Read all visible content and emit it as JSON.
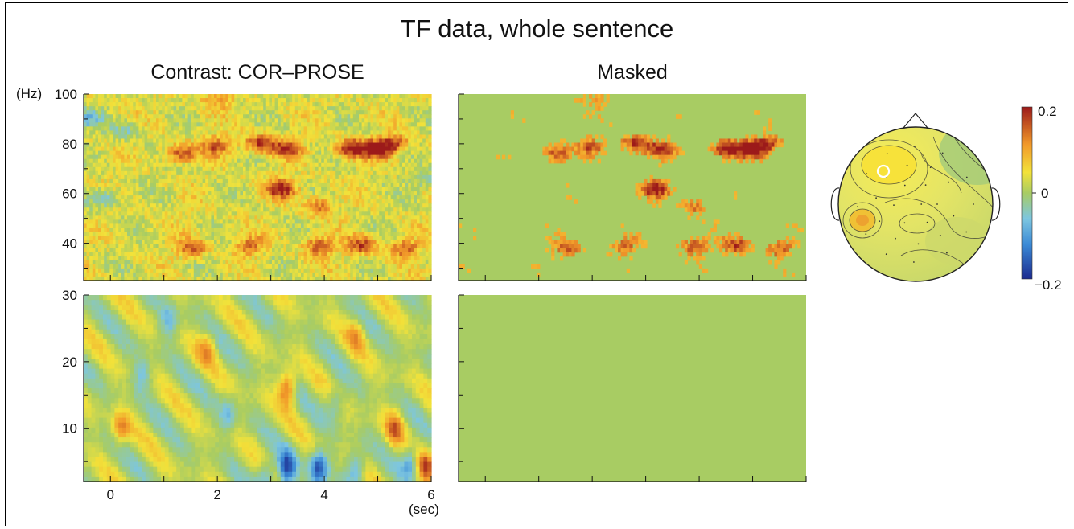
{
  "figure": {
    "title": "TF data, whole sentence"
  },
  "chart_data": [
    {
      "type": "heatmap",
      "title": "Contrast: COR–PROSE",
      "panel": "high-frequency",
      "ylabel": "(Hz)",
      "xlim": [
        -0.5,
        6
      ],
      "ylim": [
        25,
        100
      ],
      "y_ticks": [
        40,
        60,
        80,
        100
      ],
      "x_ticks": [],
      "colormap": "jet",
      "clim": [
        -0.2,
        0.2
      ],
      "hotspots": [
        {
          "t": 1.3,
          "f": 76,
          "v": 0.13
        },
        {
          "t": 2.0,
          "f": 79,
          "v": 0.12
        },
        {
          "t": 2.8,
          "f": 80,
          "v": 0.14
        },
        {
          "t": 3.3,
          "f": 78,
          "v": 0.13
        },
        {
          "t": 3.2,
          "f": 62,
          "v": 0.16
        },
        {
          "t": 3.9,
          "f": 55,
          "v": 0.1
        },
        {
          "t": 4.5,
          "f": 78,
          "v": 0.17
        },
        {
          "t": 5.0,
          "f": 78,
          "v": 0.15
        },
        {
          "t": 5.3,
          "f": 80,
          "v": 0.12
        },
        {
          "t": 1.5,
          "f": 38,
          "v": 0.12
        },
        {
          "t": 2.6,
          "f": 39,
          "v": 0.1
        },
        {
          "t": 3.9,
          "f": 39,
          "v": 0.12
        },
        {
          "t": 4.7,
          "f": 39,
          "v": 0.13
        },
        {
          "t": 5.5,
          "f": 38,
          "v": 0.11
        },
        {
          "t": 2.0,
          "f": 98,
          "v": 0.08
        },
        {
          "t": -0.1,
          "f": 58,
          "v": -0.09
        },
        {
          "t": 0.3,
          "f": 85,
          "v": -0.06
        },
        {
          "t": -0.45,
          "f": 90,
          "v": -0.1
        },
        {
          "t": 5.9,
          "f": 65,
          "v": -0.06
        }
      ]
    },
    {
      "type": "heatmap",
      "title": "",
      "panel": "low-frequency",
      "ylabel": "",
      "xlabel": "(sec)",
      "xlim": [
        -0.5,
        6
      ],
      "ylim": [
        2,
        30
      ],
      "y_ticks": [
        10,
        20,
        30
      ],
      "x_ticks": [
        0,
        2,
        4,
        6
      ],
      "colormap": "jet",
      "clim": [
        -0.2,
        0.2
      ],
      "hotspots": [
        {
          "t": 3.3,
          "f": 16,
          "v": 0.14
        },
        {
          "t": 0.2,
          "f": 10,
          "v": 0.1
        },
        {
          "t": 5.3,
          "f": 10,
          "v": 0.11
        },
        {
          "t": 5.9,
          "f": 4,
          "v": 0.14
        },
        {
          "t": 1.8,
          "f": 22,
          "v": 0.08
        },
        {
          "t": 4.6,
          "f": 24,
          "v": 0.08
        },
        {
          "t": 3.3,
          "f": 4,
          "v": -0.17
        },
        {
          "t": 3.9,
          "f": 4,
          "v": -0.18
        },
        {
          "t": 2.9,
          "f": 3,
          "v": -0.1
        },
        {
          "t": 4.6,
          "f": 4,
          "v": -0.1
        },
        {
          "t": 5.6,
          "f": 5,
          "v": -0.1
        },
        {
          "t": 1.1,
          "f": 26,
          "v": -0.08
        },
        {
          "t": 2.2,
          "f": 12,
          "v": -0.07
        },
        {
          "t": 4.2,
          "f": 14,
          "v": -0.07
        },
        {
          "t": 0.6,
          "f": 18,
          "v": -0.07
        }
      ]
    },
    {
      "type": "heatmap",
      "title": "Masked",
      "panel": "high-frequency-masked",
      "xlim": [
        -0.5,
        6
      ],
      "ylim": [
        25,
        100
      ],
      "masked": true,
      "colormap": "jet",
      "clim": [
        -0.2,
        0.2
      ]
    },
    {
      "type": "heatmap",
      "title": "",
      "panel": "low-frequency-masked",
      "xlim": [
        -0.5,
        6
      ],
      "ylim": [
        2,
        30
      ],
      "masked": true,
      "fully_masked": true,
      "colormap": "jet",
      "clim": [
        -0.2,
        0.2
      ]
    },
    {
      "type": "heatmap",
      "title": "",
      "panel": "topography",
      "colormap": "jet",
      "colorbar": {
        "max_label": "0.2",
        "mid_label": "0",
        "min_label": "−0.2",
        "range": [
          -0.2,
          0.2
        ]
      },
      "grid": false
    }
  ]
}
